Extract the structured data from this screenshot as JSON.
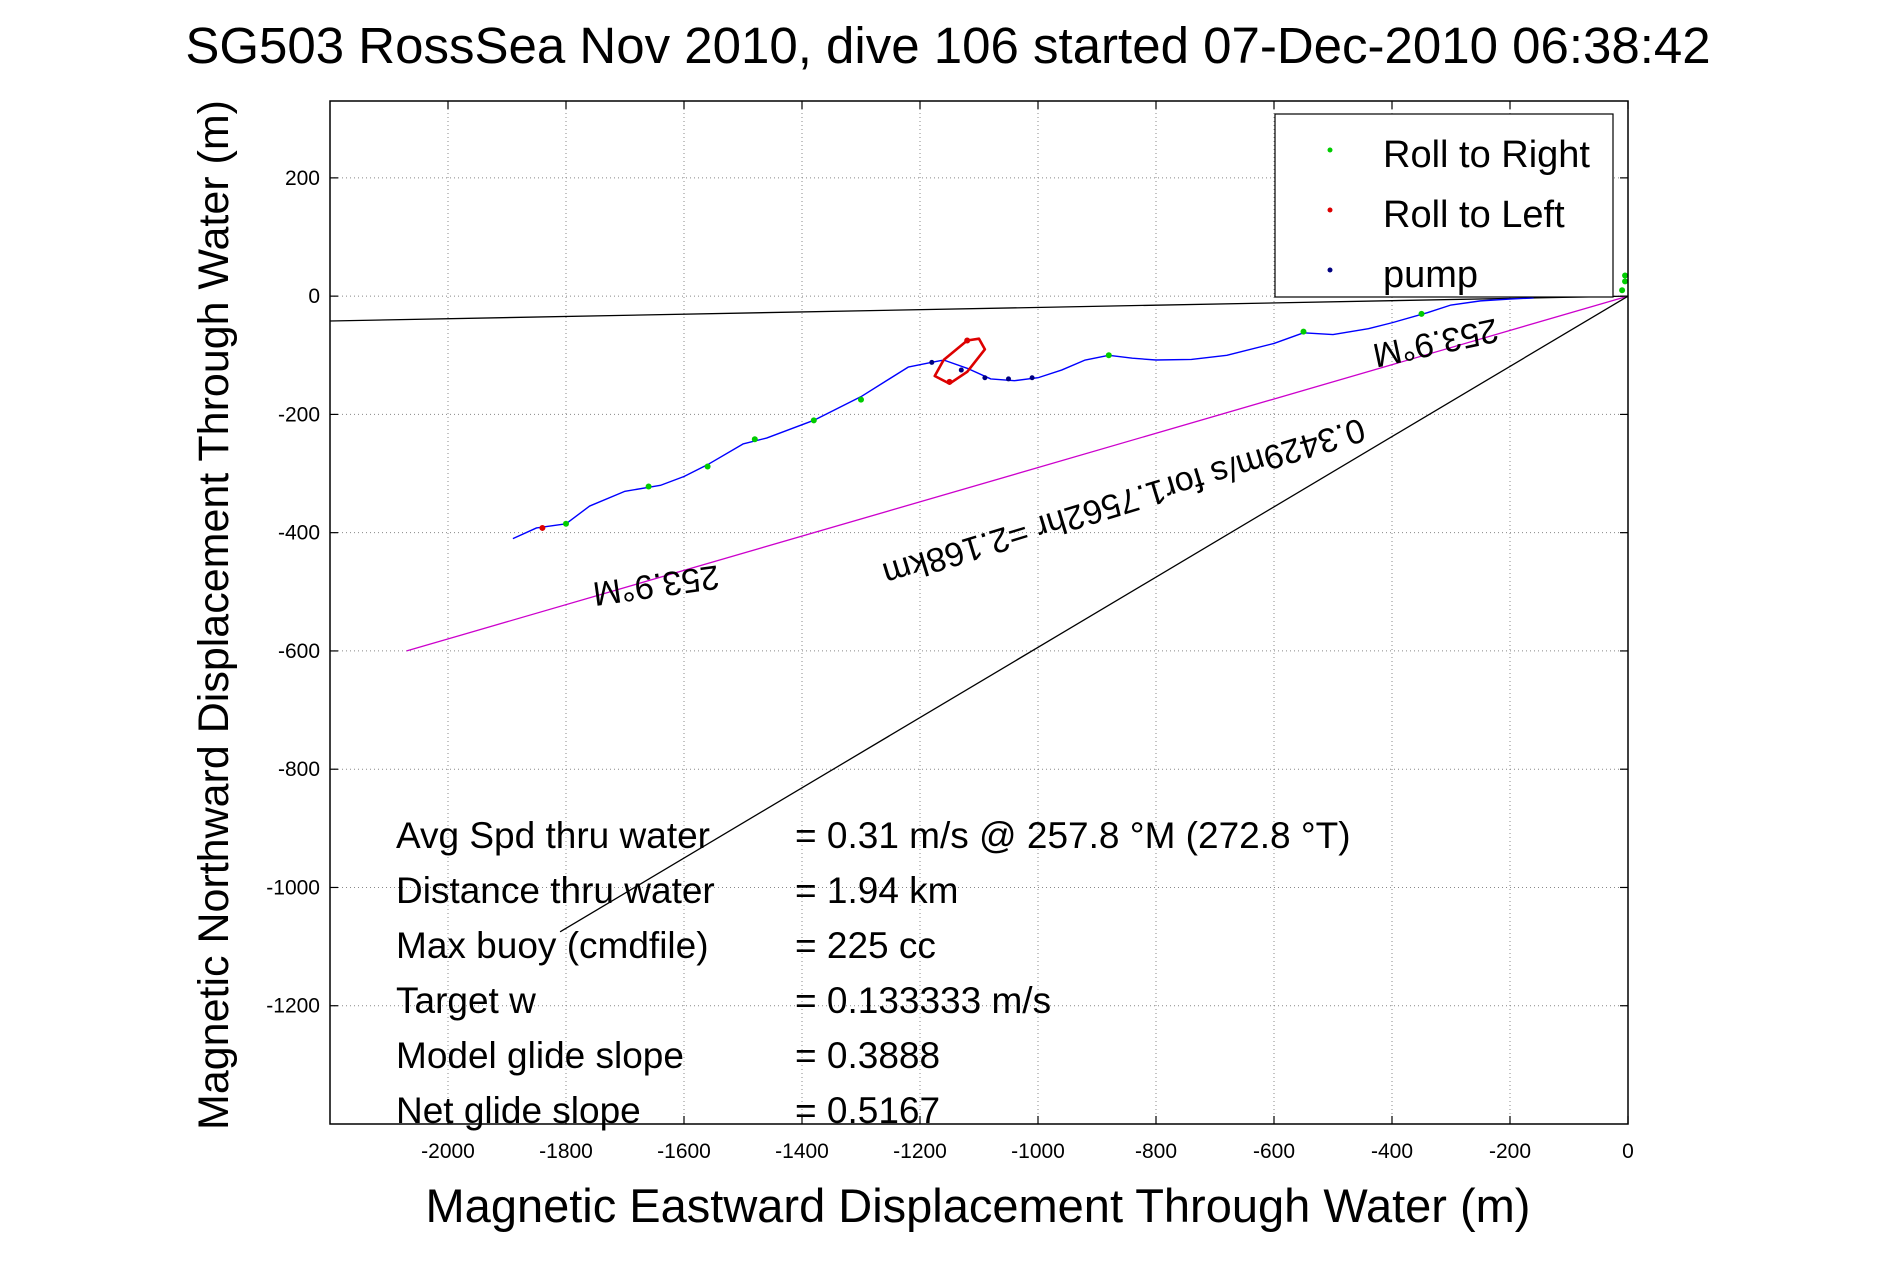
{
  "chart_data": {
    "type": "line",
    "title": "SG503 RossSea Nov 2010, dive 106 started 07-Dec-2010 06:38:42",
    "xlabel": "Magnetic Eastward Displacement Through Water (m)",
    "ylabel": "Magnetic Northward Displacement Through Water (m)",
    "xlim": [
      -2200,
      0
    ],
    "ylim": [
      -1400,
      330
    ],
    "x_ticks": [
      -2000,
      -1800,
      -1600,
      -1400,
      -1200,
      -1000,
      -800,
      -600,
      -400,
      -200,
      0
    ],
    "y_ticks": [
      200,
      0,
      -200,
      -400,
      -600,
      -800,
      -1000,
      -1200
    ],
    "grid": true,
    "legend_position": "top-right",
    "legend": [
      {
        "label": "Roll to Right",
        "color": "#00cc00"
      },
      {
        "label": "Roll to Left",
        "color": "#dd0000"
      },
      {
        "label": "pump",
        "color": "#000080"
      }
    ],
    "series": [
      {
        "name": "track",
        "color": "#0000ff",
        "points": [
          [
            -1890,
            -410
          ],
          [
            -1850,
            -392
          ],
          [
            -1800,
            -385
          ],
          [
            -1760,
            -355
          ],
          [
            -1700,
            -330
          ],
          [
            -1640,
            -320
          ],
          [
            -1600,
            -305
          ],
          [
            -1560,
            -285
          ],
          [
            -1500,
            -250
          ],
          [
            -1460,
            -240
          ],
          [
            -1420,
            -225
          ],
          [
            -1380,
            -210
          ],
          [
            -1340,
            -190
          ],
          [
            -1300,
            -170
          ],
          [
            -1260,
            -145
          ],
          [
            -1220,
            -120
          ],
          [
            -1180,
            -112
          ],
          [
            -1160,
            -108
          ],
          [
            -1120,
            -122
          ],
          [
            -1080,
            -140
          ],
          [
            -1040,
            -143
          ],
          [
            -1000,
            -138
          ],
          [
            -960,
            -125
          ],
          [
            -920,
            -108
          ],
          [
            -880,
            -100
          ],
          [
            -840,
            -105
          ],
          [
            -800,
            -108
          ],
          [
            -740,
            -107
          ],
          [
            -680,
            -100
          ],
          [
            -600,
            -80
          ],
          [
            -550,
            -62
          ],
          [
            -500,
            -65
          ],
          [
            -440,
            -55
          ],
          [
            -400,
            -45
          ],
          [
            -340,
            -28
          ],
          [
            -300,
            -15
          ],
          [
            -250,
            -8
          ],
          [
            -200,
            -5
          ],
          [
            -160,
            -3
          ]
        ]
      },
      {
        "name": "loop",
        "color": "#dd0000",
        "points": [
          [
            -1160,
            -108
          ],
          [
            -1120,
            -75
          ],
          [
            -1100,
            -72
          ],
          [
            -1090,
            -90
          ],
          [
            -1120,
            -128
          ],
          [
            -1150,
            -148
          ],
          [
            -1175,
            -135
          ],
          [
            -1160,
            -108
          ]
        ]
      }
    ],
    "lines": [
      {
        "color": "#000000",
        "points": [
          [
            -2200,
            -42
          ],
          [
            0,
            0
          ]
        ]
      },
      {
        "color": "#cc00cc",
        "points": [
          [
            -2070,
            -600
          ],
          [
            0,
            0
          ]
        ]
      },
      {
        "color": "#000000",
        "points": [
          [
            -1810,
            -1075
          ],
          [
            0,
            0
          ]
        ]
      }
    ],
    "marker_points": {
      "roll_right": [
        [
          -1800,
          -385
        ],
        [
          -1660,
          -322
        ],
        [
          -1560,
          -288
        ],
        [
          -1480,
          -242
        ],
        [
          -1380,
          -210
        ],
        [
          -1300,
          -175
        ],
        [
          -880,
          -100
        ],
        [
          -550,
          -60
        ],
        [
          -350,
          -30
        ],
        [
          -5,
          25
        ],
        [
          -10,
          10
        ],
        [
          -5,
          35
        ]
      ],
      "roll_left": [
        [
          -1840,
          -392
        ],
        [
          -1120,
          -75
        ],
        [
          -1150,
          -145
        ]
      ],
      "pump": [
        [
          -1180,
          -112
        ],
        [
          -1130,
          -125
        ],
        [
          -1090,
          -138
        ],
        [
          -1050,
          -140
        ],
        [
          -1010,
          -138
        ]
      ]
    },
    "plot_labels": [
      {
        "text": "253.9°M",
        "x": -1650,
        "y": -470,
        "rotation": 172
      },
      {
        "text": "0.3429m/s for1.7562hr =2.168km",
        "x": -860,
        "y": -330,
        "rotation": 163
      },
      {
        "text": "253.9°M",
        "x": -330,
        "y": -60,
        "rotation": 168
      }
    ],
    "annotations": [
      {
        "label": "Avg Spd thru water",
        "value": "=  0.31 m/s @ 257.8 °M (272.8 °T)"
      },
      {
        "label": "Distance thru water",
        "value": "=  1.94 km"
      },
      {
        "label": "Max buoy (cmdfile)",
        "value": "= 225 cc"
      },
      {
        "label": "Target w",
        "value": "= 0.133333 m/s"
      },
      {
        "label": "Model glide slope",
        "value": "= 0.3888"
      },
      {
        "label": "Net glide slope",
        "value": "= 0.5167"
      }
    ]
  }
}
